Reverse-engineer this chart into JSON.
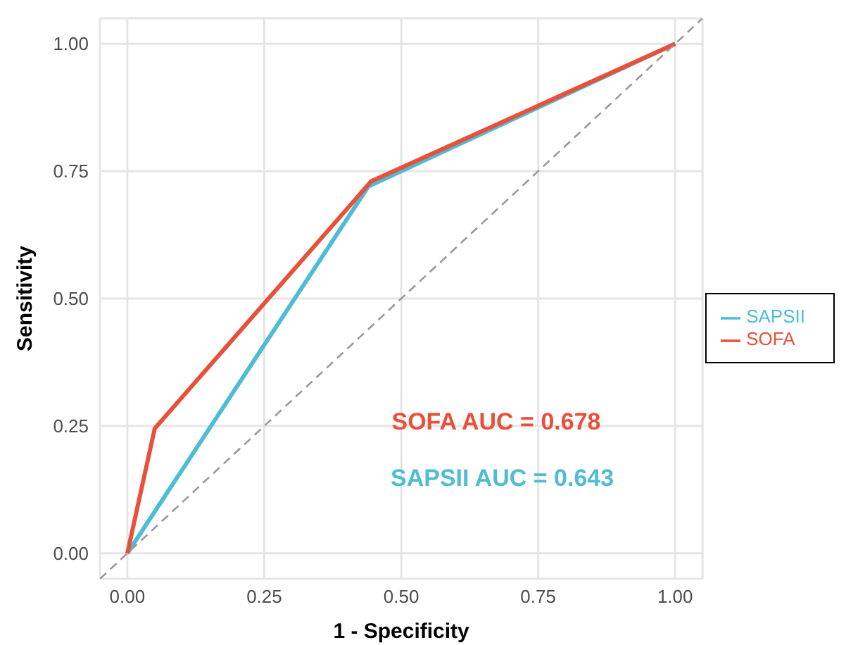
{
  "chart_data": {
    "type": "line",
    "xlabel": "1 - Specificity",
    "ylabel": "Sensitivity",
    "xlim": [
      -0.05,
      1.05
    ],
    "ylim": [
      -0.05,
      1.05
    ],
    "xticks": [
      {
        "value": 0,
        "label": "0.00"
      },
      {
        "value": 0.25,
        "label": "0.25"
      },
      {
        "value": 0.5,
        "label": "0.50"
      },
      {
        "value": 0.75,
        "label": "0.75"
      },
      {
        "value": 1,
        "label": "1.00"
      }
    ],
    "yticks": [
      {
        "value": 0,
        "label": "0.00"
      },
      {
        "value": 0.25,
        "label": "0.25"
      },
      {
        "value": 0.5,
        "label": "0.50"
      },
      {
        "value": 0.75,
        "label": "0.75"
      },
      {
        "value": 1,
        "label": "1.00"
      }
    ],
    "grid": true,
    "legend": "right",
    "marker": "none",
    "series": [
      {
        "name": "SAPSII",
        "color": "#4ebcd5",
        "x": [
          0,
          0.44,
          1
        ],
        "values": [
          0,
          0.72,
          1
        ],
        "line_style": "solid"
      },
      {
        "name": "SOFA",
        "color": "#e8503a",
        "x": [
          0,
          0.05,
          0.445,
          1
        ],
        "values": [
          0,
          0.245,
          0.73,
          1
        ],
        "line_style": "solid"
      },
      {
        "color": "#999999",
        "x": [
          -0.05,
          1.05
        ],
        "values": [
          -0.05,
          1.05
        ],
        "line_style": "dashed"
      }
    ],
    "annotations": [
      "SOFA AUC = 0.678",
      "SAPSII AUC = 0.643"
    ]
  }
}
